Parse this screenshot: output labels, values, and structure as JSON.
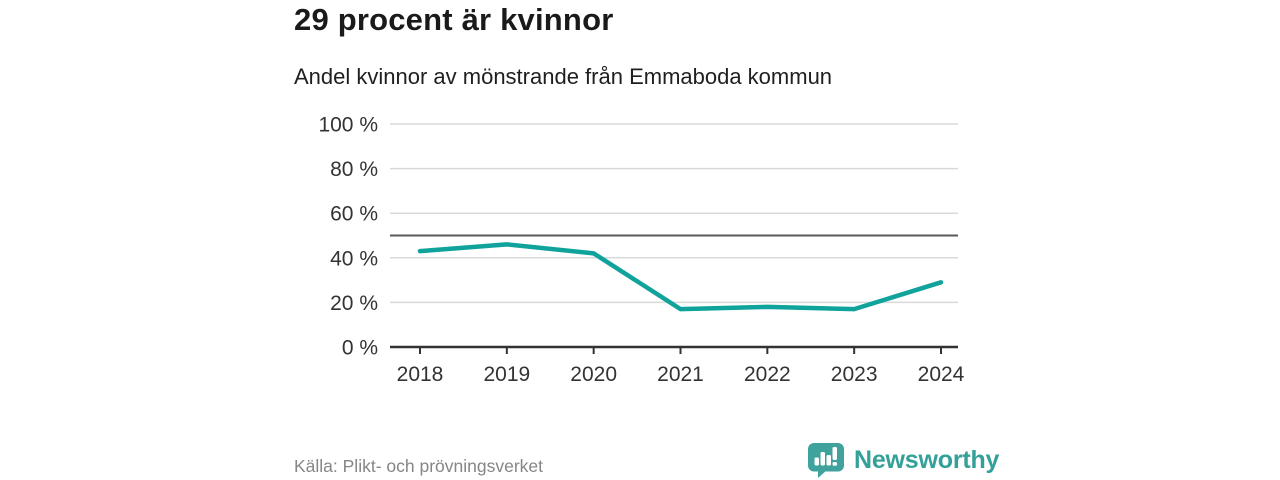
{
  "header": {
    "title": "29 procent är kvinnor",
    "subtitle": "Andel kvinnor av mönstrande från Emmaboda kommun"
  },
  "chart_data": {
    "type": "line",
    "title": "29 procent är kvinnor",
    "subtitle": "Andel kvinnor av mönstrande från Emmaboda kommun",
    "x": [
      "2018",
      "2019",
      "2020",
      "2021",
      "2022",
      "2023",
      "2024"
    ],
    "series": [
      {
        "name": "Andel kvinnor av mönstrande",
        "values": [
          43,
          46,
          42,
          17,
          18,
          17,
          29
        ]
      }
    ],
    "unit": "%",
    "ylim": [
      0,
      100
    ],
    "yticks": [
      0,
      20,
      40,
      60,
      80,
      100
    ],
    "ytick_labels": [
      "0 %",
      "20 %",
      "40 %",
      "60 %",
      "80 %",
      "100 %"
    ],
    "ytick_suffix": " %",
    "reference_line": 50,
    "grid": true,
    "legend": "none",
    "xlabel": "",
    "ylabel": ""
  },
  "footer": {
    "source": "Källa: Plikt- och prövningsverket",
    "brand": "Newsworthy"
  },
  "colors": {
    "line": "#10a39b",
    "gridline": "#d9d9d9",
    "reference_line": "#595959",
    "axis": "#333333",
    "brand": "#33a09a",
    "brand_icon": "#3fa29c",
    "title_text": "#1a1a1a",
    "muted_text": "#868686"
  },
  "icons": {
    "logo": "newsworthy-bar-chart-speech-bubble-icon"
  }
}
